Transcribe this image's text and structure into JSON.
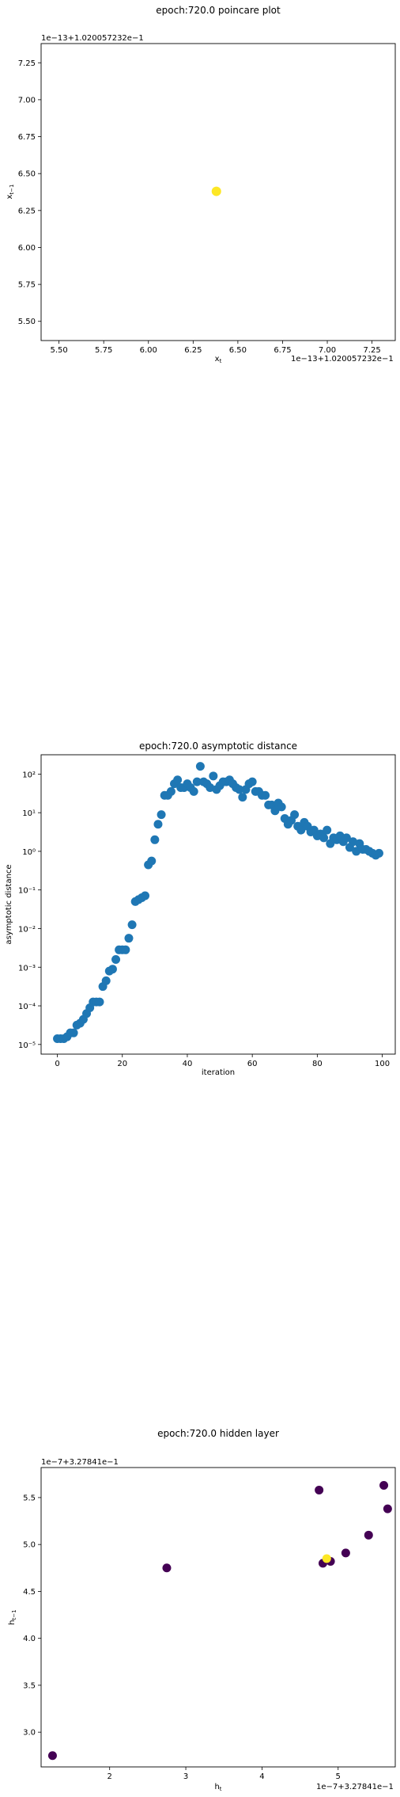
{
  "chart_data": [
    {
      "type": "scatter",
      "title": "epoch:720.0 poincare plot",
      "xlabel": "x_t",
      "ylabel": "x_{t-1}",
      "offset_label_top": "1e−13+1.020057232e−1",
      "offset_label_bottom": "1e−13+1.020057232e−1",
      "xlim": [
        5.4,
        7.38
      ],
      "ylim": [
        5.37,
        7.38
      ],
      "xticks": [
        "5.50",
        "5.75",
        "6.00",
        "6.25",
        "6.50",
        "6.75",
        "7.00",
        "7.25"
      ],
      "yticks": [
        "5.50",
        "5.75",
        "6.00",
        "6.25",
        "6.50",
        "6.75",
        "7.00",
        "7.25"
      ],
      "points": [
        {
          "x": 6.38,
          "y": 6.38,
          "color": "#fde725"
        }
      ]
    },
    {
      "type": "scatter",
      "title": "epoch:720.0 asymptotic distance",
      "xlabel": "iteration",
      "ylabel": "asymptotic distance",
      "yscale": "log",
      "xlim": [
        -5,
        104
      ],
      "ylim_log10": [
        -5.25,
        2.5
      ],
      "xticks": [
        "0",
        "20",
        "40",
        "60",
        "80",
        "100"
      ],
      "yticks": [
        "10⁻⁵",
        "10⁻⁴",
        "10⁻³",
        "10⁻²",
        "10⁻¹",
        "10⁰",
        "10¹",
        "10²"
      ],
      "color": "#1f77b4",
      "x": [
        0,
        1,
        2,
        3,
        4,
        5,
        6,
        7,
        8,
        9,
        10,
        11,
        12,
        13,
        14,
        15,
        16,
        17,
        18,
        19,
        20,
        21,
        22,
        23,
        24,
        25,
        26,
        27,
        28,
        29,
        30,
        31,
        32,
        33,
        34,
        35,
        36,
        37,
        38,
        39,
        40,
        41,
        42,
        43,
        44,
        45,
        46,
        47,
        48,
        49,
        50,
        51,
        52,
        53,
        54,
        55,
        56,
        57,
        58,
        59,
        60,
        61,
        62,
        63,
        64,
        65,
        66,
        67,
        68,
        69,
        70,
        71,
        72,
        73,
        74,
        75,
        76,
        77,
        78,
        79,
        80,
        81,
        82,
        83,
        84,
        85,
        86,
        87,
        88,
        89,
        90,
        91,
        92,
        93,
        94,
        95,
        96,
        97,
        98,
        99
      ],
      "y_log10": [
        -4.85,
        -4.85,
        -4.85,
        -4.8,
        -4.7,
        -4.7,
        -4.5,
        -4.45,
        -4.35,
        -4.2,
        -4.05,
        -3.9,
        -3.9,
        -3.9,
        -3.5,
        -3.35,
        -3.1,
        -3.05,
        -2.8,
        -2.55,
        -2.55,
        -2.55,
        -2.25,
        -1.9,
        -1.3,
        -1.25,
        -1.2,
        -1.15,
        -0.35,
        -0.25,
        0.3,
        0.7,
        0.95,
        1.45,
        1.45,
        1.55,
        1.75,
        1.85,
        1.65,
        1.65,
        1.75,
        1.65,
        1.55,
        1.8,
        2.2,
        1.8,
        1.75,
        1.65,
        1.95,
        1.6,
        1.7,
        1.8,
        1.8,
        1.85,
        1.75,
        1.65,
        1.6,
        1.4,
        1.6,
        1.75,
        1.8,
        1.55,
        1.55,
        1.45,
        1.45,
        1.2,
        1.2,
        1.05,
        1.25,
        1.15,
        0.85,
        0.7,
        0.8,
        0.95,
        0.65,
        0.55,
        0.75,
        0.65,
        0.5,
        0.55,
        0.4,
        0.45,
        0.35,
        0.55,
        0.2,
        0.35,
        0.3,
        0.4,
        0.25,
        0.35,
        0.1,
        0.25,
        0.0,
        0.2,
        0.05,
        0.05,
        0.0,
        -0.05,
        -0.1,
        -0.05
      ]
    },
    {
      "type": "scatter",
      "title": "epoch:720.0 hidden layer",
      "xlabel": "h_t",
      "ylabel": "h_{t-1}",
      "offset_label_top": "1e−7+3.27841e−1",
      "offset_label_bottom": "1e−7+3.27841e−1",
      "xlim": [
        1.1,
        5.75
      ],
      "ylim": [
        2.63,
        5.82
      ],
      "xticks": [
        "2",
        "3",
        "4",
        "5"
      ],
      "yticks": [
        "3.0",
        "3.5",
        "4.0",
        "4.5",
        "5.0",
        "5.5"
      ],
      "points": [
        {
          "x": 1.25,
          "y": 2.75,
          "color": "#440154"
        },
        {
          "x": 2.75,
          "y": 4.75,
          "color": "#440154"
        },
        {
          "x": 4.75,
          "y": 5.58,
          "color": "#440154"
        },
        {
          "x": 4.8,
          "y": 4.8,
          "color": "#440154"
        },
        {
          "x": 4.9,
          "y": 4.82,
          "color": "#440154"
        },
        {
          "x": 5.1,
          "y": 4.91,
          "color": "#440154"
        },
        {
          "x": 5.4,
          "y": 5.1,
          "color": "#440154"
        },
        {
          "x": 5.6,
          "y": 5.63,
          "color": "#440154"
        },
        {
          "x": 5.65,
          "y": 5.38,
          "color": "#440154"
        },
        {
          "x": 4.85,
          "y": 4.85,
          "color": "#fde725"
        }
      ]
    }
  ]
}
